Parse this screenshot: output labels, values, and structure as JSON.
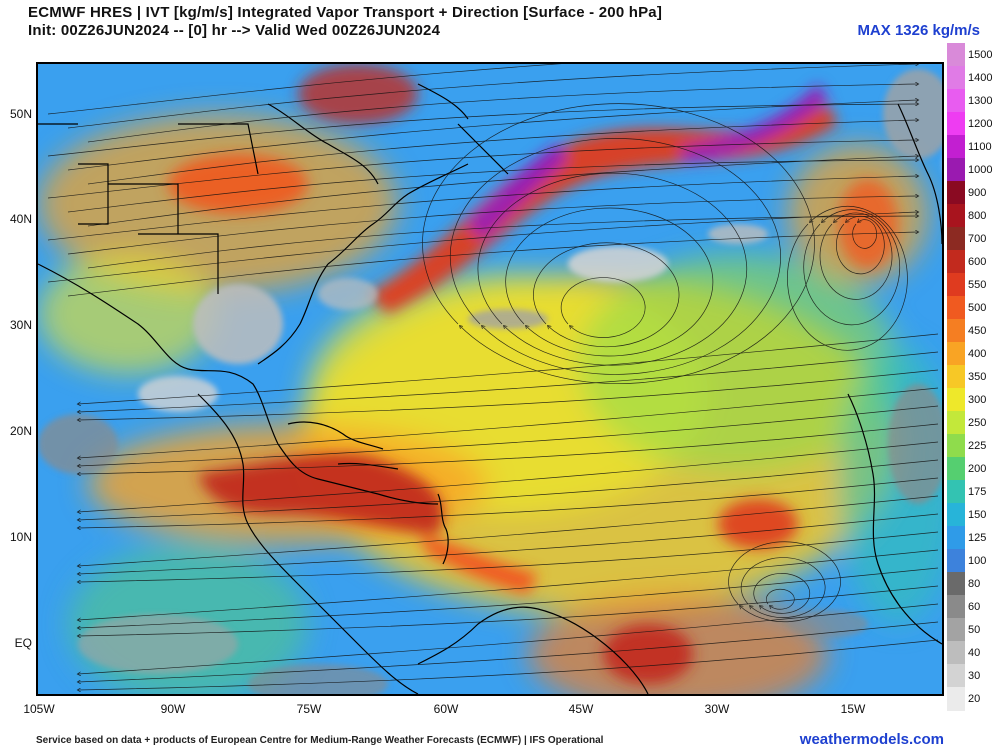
{
  "header": {
    "title": "ECMWF HRES | IVT [kg/m/s] Integrated Vapor Transport + Direction [Surface - 200 hPa]",
    "init_line": "Init: 00Z26JUN2024 -- [0] hr --> Valid Wed 00Z26JUN2024",
    "max_label": "MAX 1326 kg/m/s"
  },
  "axes": {
    "lat_labels": [
      "50N",
      "40N",
      "30N",
      "20N",
      "10N",
      "EQ"
    ],
    "lon_labels": [
      "105W",
      "90W",
      "75W",
      "60W",
      "45W",
      "30W",
      "15W"
    ]
  },
  "colorbar": {
    "levels": [
      {
        "label": "1500",
        "color": "#d98ad9"
      },
      {
        "label": "1400",
        "color": "#e07be6"
      },
      {
        "label": "1300",
        "color": "#e85cf0"
      },
      {
        "label": "1200",
        "color": "#ee3cf2"
      },
      {
        "label": "1100",
        "color": "#c21fd1"
      },
      {
        "label": "1000",
        "color": "#9a1ab0"
      },
      {
        "label": "900",
        "color": "#8a0a22"
      },
      {
        "label": "800",
        "color": "#a8141e"
      },
      {
        "label": "700",
        "color": "#8c2a22"
      },
      {
        "label": "600",
        "color": "#c22a1e"
      },
      {
        "label": "550",
        "color": "#df3b1f"
      },
      {
        "label": "500",
        "color": "#f05a20"
      },
      {
        "label": "450",
        "color": "#f57e22"
      },
      {
        "label": "400",
        "color": "#f9a424"
      },
      {
        "label": "350",
        "color": "#f7c826"
      },
      {
        "label": "300",
        "color": "#eee82a"
      },
      {
        "label": "250",
        "color": "#c3e83a"
      },
      {
        "label": "225",
        "color": "#8fdc4c"
      },
      {
        "label": "200",
        "color": "#55cf70"
      },
      {
        "label": "175",
        "color": "#33c3b2"
      },
      {
        "label": "150",
        "color": "#27b4d9"
      },
      {
        "label": "125",
        "color": "#2f9be8"
      },
      {
        "label": "100",
        "color": "#3d82dc"
      },
      {
        "label": "80",
        "color": "#6a6a6a"
      },
      {
        "label": "60",
        "color": "#8a8a8a"
      },
      {
        "label": "50",
        "color": "#a3a3a3"
      },
      {
        "label": "40",
        "color": "#bdbdbd"
      },
      {
        "label": "30",
        "color": "#d3d3d3"
      },
      {
        "label": "20",
        "color": "#ebebeb"
      }
    ]
  },
  "footer": {
    "credit": "Service based on data + products of European Centre for Medium-Range Weather Forecasts (ECMWF) | IFS Operational",
    "brand": "weathermodels.com"
  }
}
